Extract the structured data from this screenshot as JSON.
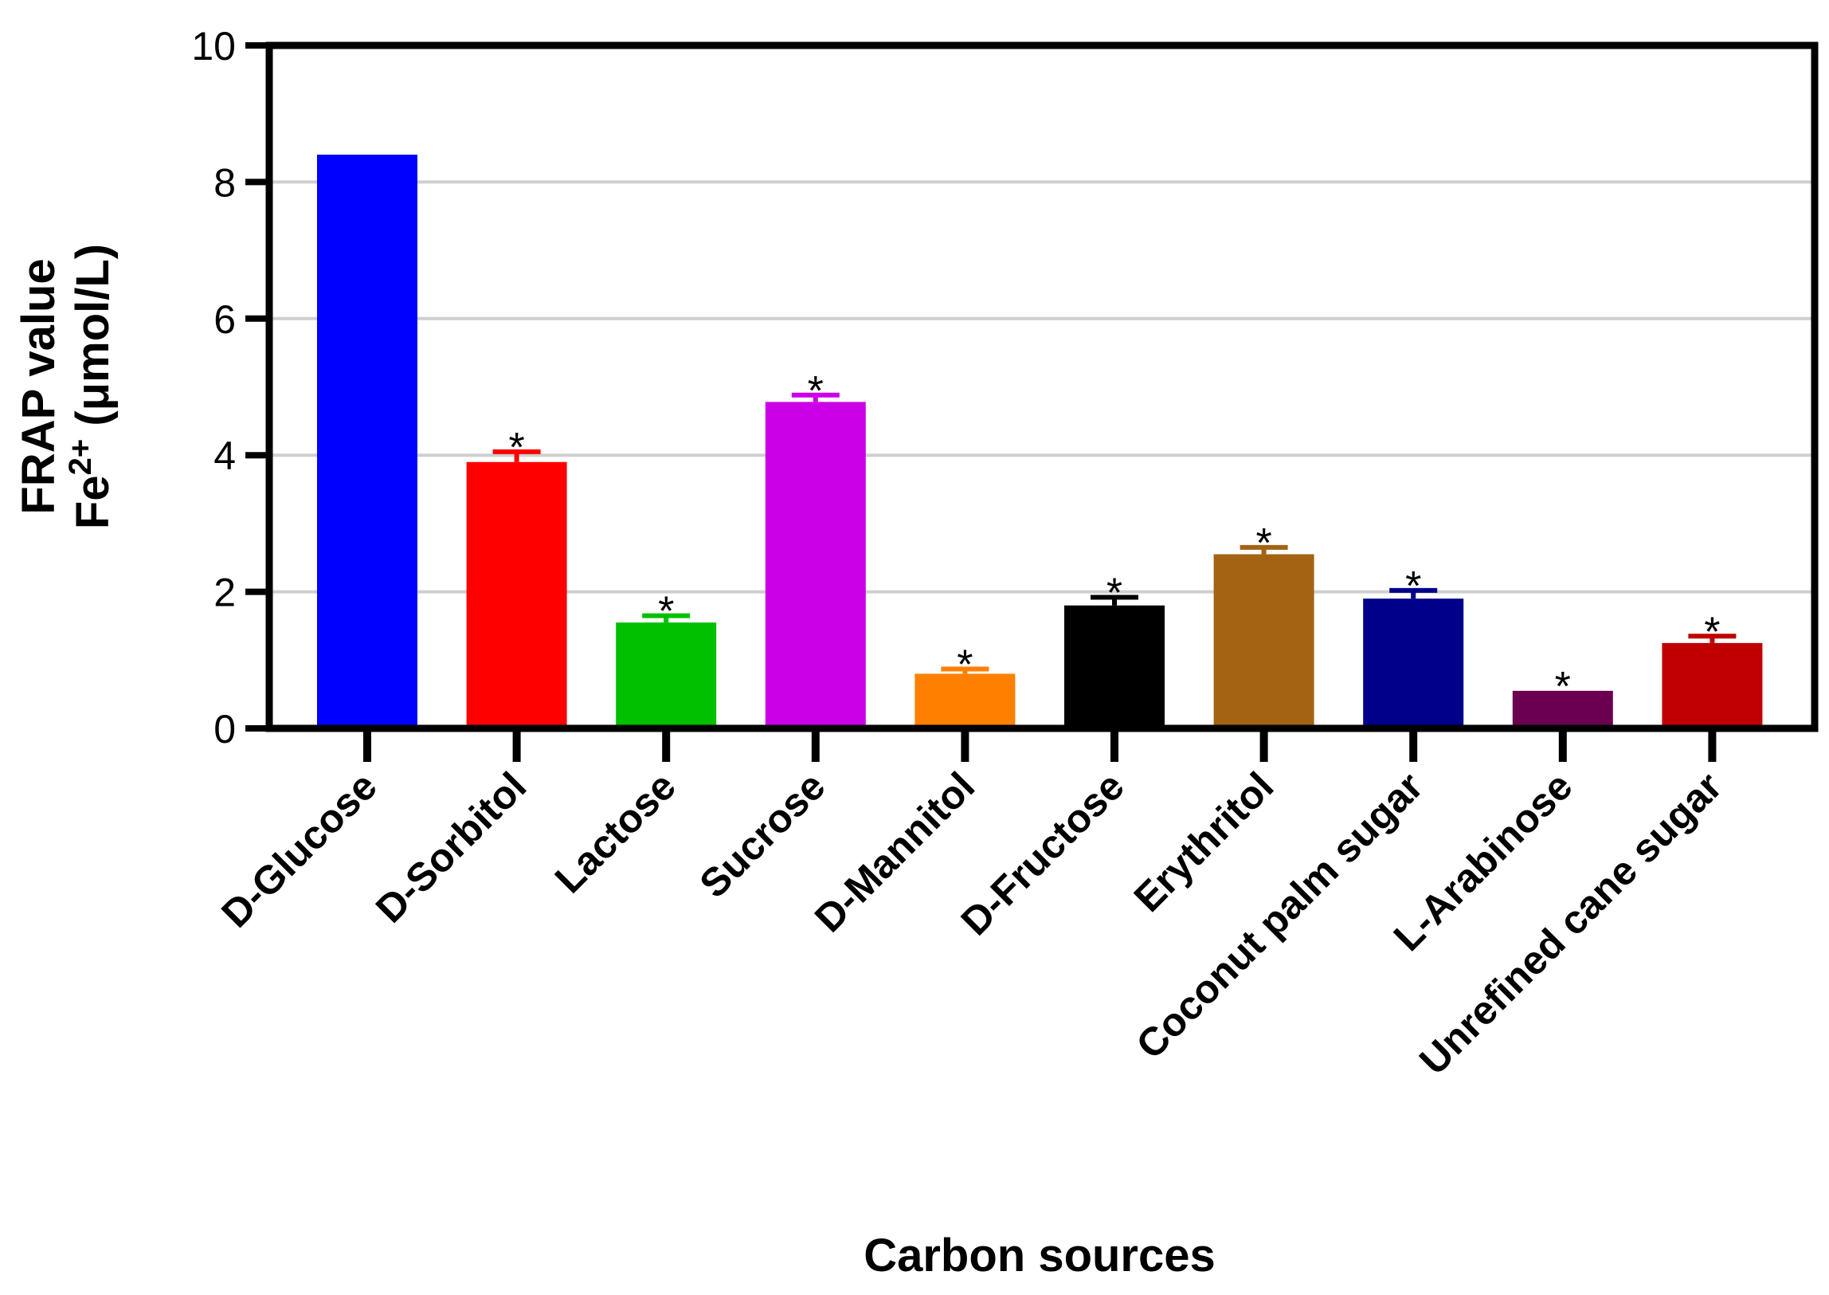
{
  "chart_data": {
    "type": "bar",
    "xlabel": "Carbon sources",
    "ylabel_line1": "FRAP value",
    "ylabel_line2_base": "Fe",
    "ylabel_line2_sup": "2+",
    "ylabel_line2_unit": " (μmol/L)",
    "ylim": [
      0,
      10
    ],
    "yticks": [
      "0",
      "2",
      "4",
      "6",
      "8",
      "10"
    ],
    "grid": "horizontal",
    "categories": [
      "D-Glucose",
      "D-Sorbitol",
      "Lactose",
      "Sucrose",
      "D-Mannitol",
      "D-Fructose",
      "Erythritol",
      "Coconut palm sugar",
      "L-Arabinose",
      "Unrefined cane sugar"
    ],
    "values": [
      8.4,
      3.9,
      1.55,
      4.78,
      0.8,
      1.8,
      2.55,
      1.9,
      0.55,
      1.25
    ],
    "errors": [
      0.0,
      0.15,
      0.1,
      0.1,
      0.07,
      0.12,
      0.1,
      0.12,
      0.0,
      0.1
    ],
    "colors": [
      "#0000ff",
      "#ff0000",
      "#00c000",
      "#cc00e6",
      "#ff8000",
      "#000000",
      "#a36312",
      "#00008b",
      "#6b0050",
      "#c00000"
    ],
    "significance": [
      "",
      "*",
      "*",
      "*",
      "*",
      "*",
      "*",
      "*",
      "*",
      "*"
    ]
  }
}
